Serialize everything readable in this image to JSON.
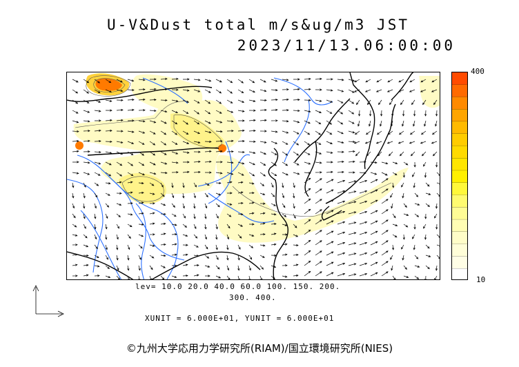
{
  "title": {
    "line1": "U-V&Dust total m/s&ug/m3 JST",
    "line2": "2023/11/13.06:00:00"
  },
  "colorbar": {
    "max_label": "400",
    "min_label": "10",
    "colors": [
      "#ff4b00",
      "#ff6a00",
      "#ff8a00",
      "#ffa500",
      "#ffba00",
      "#ffcc00",
      "#ffda00",
      "#ffe600",
      "#fff000",
      "#fff83a",
      "#fffb70",
      "#fffc96",
      "#fffdb4",
      "#fffdc8",
      "#fffed8",
      "#fffee6",
      "#ffffff"
    ]
  },
  "levels": {
    "line1": "lev= 10.0 20.0 40.0 60.0 100. 150. 200.",
    "line2": "300. 400."
  },
  "units": "XUNIT = 6.000E+01, YUNIT = 6.000E+01",
  "copyright": "©九州大学応用力学研究所(RIAM)/国立環境研究所(NIES)",
  "map_colors": {
    "coast": "#000000",
    "river": "#2a6fff",
    "dust_light": "#fffbc4",
    "dust_mid": "#fff38a",
    "dust_high": "#ff7a00"
  }
}
